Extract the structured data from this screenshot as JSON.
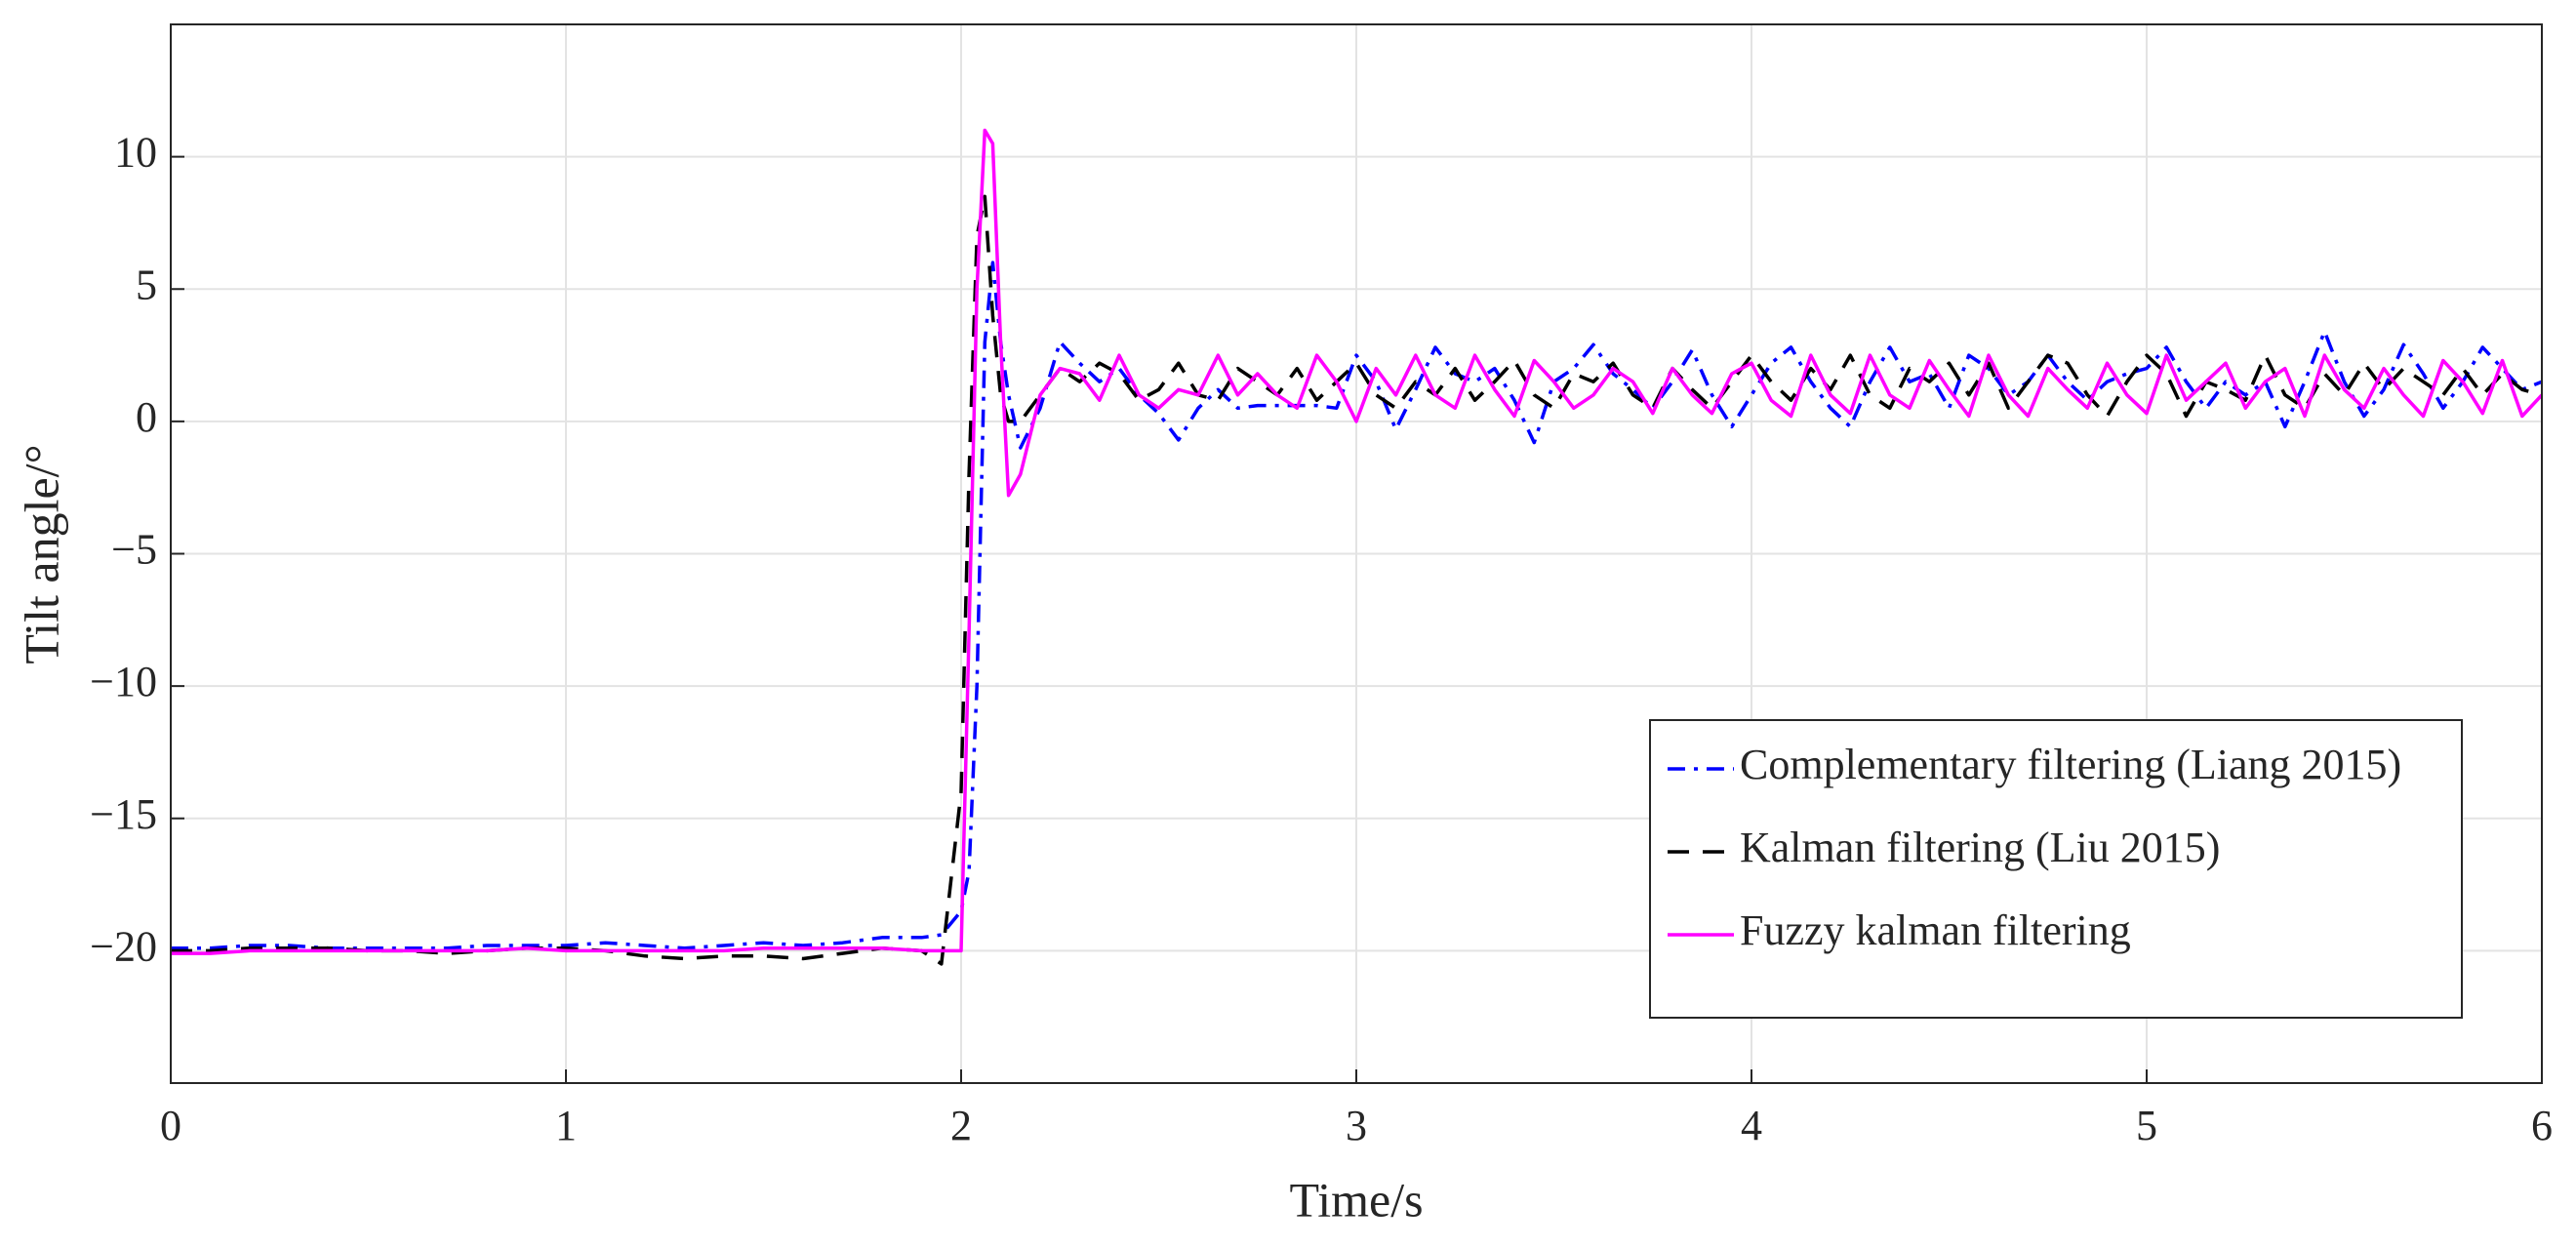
{
  "chart_data": {
    "type": "line",
    "xlabel": "Time/s",
    "ylabel": "Tilt angle/°",
    "xlim": [
      0,
      6
    ],
    "xticks": [
      0,
      1,
      2,
      3,
      4,
      5,
      6
    ],
    "ylim": [
      -25,
      15
    ],
    "yticks": [
      {
        "value": -20,
        "label": "−20"
      },
      {
        "value": -15,
        "label": "−15"
      },
      {
        "value": -10,
        "label": "−10"
      },
      {
        "value": -5,
        "label": "−5"
      },
      0,
      5,
      10
    ],
    "grid": true,
    "legend": "southeast",
    "x": [
      0,
      0.1,
      0.2,
      0.3,
      0.4,
      0.5,
      0.6,
      0.7,
      0.8,
      0.9,
      1.0,
      1.1,
      1.2,
      1.3,
      1.4,
      1.5,
      1.6,
      1.7,
      1.8,
      1.9,
      1.95,
      2.0,
      2.02,
      2.04,
      2.06,
      2.08,
      2.1,
      2.12,
      2.15,
      2.2,
      2.25,
      2.3,
      2.35,
      2.4,
      2.45,
      2.5,
      2.55,
      2.6,
      2.65,
      2.7,
      2.75,
      2.8,
      2.85,
      2.9,
      2.95,
      3.0,
      3.05,
      3.1,
      3.15,
      3.2,
      3.25,
      3.3,
      3.35,
      3.4,
      3.45,
      3.5,
      3.55,
      3.6,
      3.65,
      3.7,
      3.75,
      3.8,
      3.85,
      3.9,
      3.95,
      4.0,
      4.05,
      4.1,
      4.15,
      4.2,
      4.25,
      4.3,
      4.35,
      4.4,
      4.45,
      4.5,
      4.55,
      4.6,
      4.65,
      4.7,
      4.75,
      4.8,
      4.85,
      4.9,
      4.95,
      5.0,
      5.05,
      5.1,
      5.15,
      5.2,
      5.25,
      5.3,
      5.35,
      5.4,
      5.45,
      5.5,
      5.55,
      5.6,
      5.65,
      5.7,
      5.75,
      5.8,
      5.85,
      5.9,
      5.95,
      6.0
    ],
    "series": [
      {
        "name": "Complementary filtering (Liang 2015)",
        "color": "#0000ff",
        "linestyle": "-.",
        "values": [
          -19.9,
          -19.9,
          -19.8,
          -19.8,
          -19.9,
          -19.9,
          -19.9,
          -19.9,
          -19.8,
          -19.8,
          -19.8,
          -19.7,
          -19.8,
          -19.9,
          -19.8,
          -19.7,
          -19.8,
          -19.7,
          -19.5,
          -19.5,
          -19.4,
          -18.5,
          -17,
          -10,
          3,
          6,
          3,
          1,
          -1,
          0.5,
          3,
          2.2,
          1.5,
          2.0,
          1.0,
          0.3,
          -0.7,
          0.5,
          1.2,
          0.5,
          0.6,
          0.6,
          0.6,
          0.6,
          0.5,
          2.5,
          1.5,
          -0.3,
          1.2,
          2.8,
          1.8,
          1.5,
          2.0,
          0.8,
          -0.8,
          1.5,
          2.0,
          2.9,
          1.8,
          1.2,
          0.5,
          1.5,
          2.7,
          1.0,
          -0.2,
          1.0,
          2.2,
          2.8,
          1.5,
          0.5,
          -0.2,
          1.5,
          2.8,
          1.5,
          1.8,
          0.5,
          2.5,
          2.0,
          1.0,
          1.5,
          2.5,
          1.5,
          0.8,
          1.5,
          1.8,
          2.0,
          2.8,
          1.5,
          0.5,
          1.5,
          1.0,
          1.5,
          -0.2,
          1.5,
          3.4,
          1.5,
          0.2,
          1.2,
          2.9,
          1.8,
          0.5,
          1.5,
          2.8,
          2.0,
          1.2,
          1.5
        ]
      },
      {
        "name": "Kalman filtering (Liu 2015)",
        "color": "#000000",
        "linestyle": "--",
        "values": [
          -20,
          -20,
          -19.9,
          -19.9,
          -19.9,
          -20,
          -20,
          -20.1,
          -20,
          -19.9,
          -19.9,
          -20,
          -20.2,
          -20.3,
          -20.2,
          -20.2,
          -20.3,
          -20.1,
          -19.9,
          -20,
          -20.5,
          -14,
          -2,
          7,
          8.5,
          4,
          1,
          0,
          0,
          1,
          2,
          1.5,
          2.2,
          1.8,
          0.8,
          1.2,
          2.2,
          1.0,
          0.8,
          2.0,
          1.5,
          1.0,
          2.0,
          0.8,
          1.5,
          2.2,
          1.0,
          0.5,
          1.5,
          1.0,
          2.0,
          0.8,
          1.5,
          2.3,
          1.0,
          0.5,
          1.8,
          1.5,
          2.2,
          1.0,
          0.5,
          2.0,
          1.2,
          0.5,
          1.5,
          2.5,
          1.5,
          0.8,
          2.0,
          1.2,
          2.5,
          1.0,
          0.5,
          2.0,
          1.5,
          2.2,
          1.0,
          2.2,
          0.5,
          1.5,
          2.5,
          2.2,
          1.0,
          0.2,
          1.5,
          2.5,
          1.8,
          0.2,
          1.5,
          1.2,
          0.8,
          2.5,
          1.0,
          0.5,
          1.8,
          1.0,
          2.2,
          1.2,
          2.0,
          1.5,
          1.0,
          2.0,
          1.0,
          1.8,
          1.2,
          1.0
        ]
      },
      {
        "name": "Fuzzy kalman filtering",
        "color": "#ff00ff",
        "linestyle": "-",
        "values": [
          -20.1,
          -20.1,
          -20,
          -20,
          -20,
          -20,
          -20,
          -20,
          -20,
          -19.9,
          -20,
          -20,
          -20,
          -20,
          -20,
          -19.9,
          -19.9,
          -19.9,
          -19.9,
          -20,
          -20,
          -20,
          -8,
          5,
          11,
          10.5,
          3,
          -2.8,
          -2,
          1,
          2,
          1.8,
          0.8,
          2.5,
          1.0,
          0.5,
          1.2,
          1.0,
          2.5,
          1.0,
          1.8,
          1.0,
          0.5,
          2.5,
          1.5,
          0.0,
          2.0,
          1.0,
          2.5,
          1.0,
          0.5,
          2.5,
          1.2,
          0.2,
          2.3,
          1.5,
          0.5,
          1.0,
          2.0,
          1.5,
          0.3,
          2.0,
          1.0,
          0.3,
          1.8,
          2.2,
          0.8,
          0.2,
          2.5,
          1.0,
          0.3,
          2.5,
          1.0,
          0.5,
          2.3,
          1.2,
          0.2,
          2.5,
          1.0,
          0.2,
          2.0,
          1.2,
          0.5,
          2.2,
          1.0,
          0.3,
          2.5,
          0.8,
          1.5,
          2.2,
          0.5,
          1.5,
          2.0,
          0.2,
          2.5,
          1.2,
          0.5,
          2.0,
          1.0,
          0.2,
          2.3,
          1.5,
          0.3,
          2.3,
          0.2,
          1.0
        ]
      }
    ]
  }
}
